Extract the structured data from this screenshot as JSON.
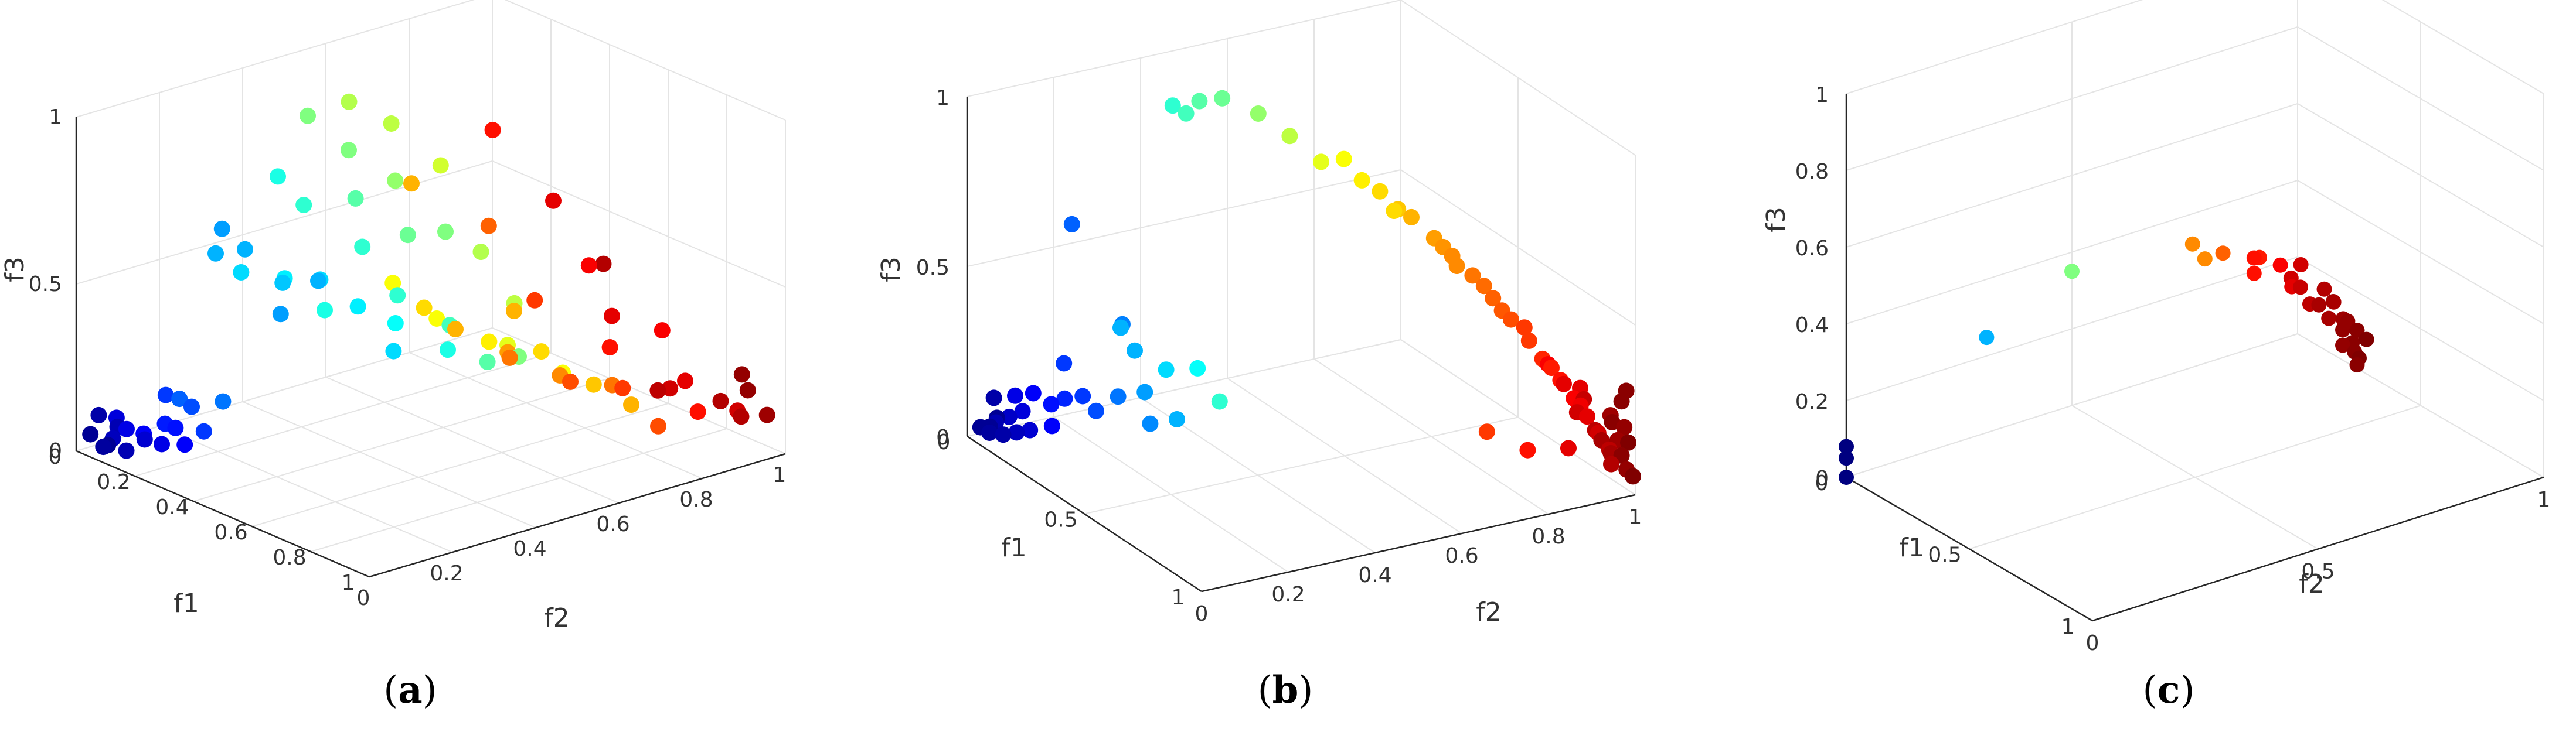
{
  "figure": {
    "panels": [
      {
        "label_open": "(",
        "label_letter": "a",
        "label_close": ")"
      },
      {
        "label_open": "(",
        "label_letter": "b",
        "label_close": ")"
      },
      {
        "label_open": "(",
        "label_letter": "c",
        "label_close": ")"
      }
    ]
  },
  "chart_data": [
    {
      "type": "scatter",
      "panel": "a",
      "xlabel": "f1",
      "ylabel": "f2",
      "zlabel": "f3",
      "xlim": [
        0,
        1
      ],
      "ylim": [
        0,
        1
      ],
      "zlim": [
        0,
        1
      ],
      "x_ticks": [
        "0",
        "0.2",
        "0.4",
        "0.6",
        "0.8",
        "1"
      ],
      "y_ticks": [
        "0",
        "0.2",
        "0.4",
        "0.6",
        "0.8",
        "1"
      ],
      "z_ticks": [
        "0",
        "0.5",
        "1"
      ],
      "x_tick_values": [
        0,
        0.2,
        0.4,
        0.6,
        0.8,
        1
      ],
      "y_tick_values": [
        0,
        0.2,
        0.4,
        0.6,
        0.8,
        1
      ],
      "z_tick_values": [
        0,
        0.5,
        1
      ],
      "grid": true,
      "colormap": "jet",
      "color_by": "f2",
      "points": [
        [
          0.02,
          0.02,
          0.05
        ],
        [
          0.05,
          0.03,
          0.02
        ],
        [
          0.08,
          0.02,
          0.04
        ],
        [
          0.04,
          0.06,
          0.03
        ],
        [
          0.1,
          0.05,
          0.02
        ],
        [
          0.03,
          0.1,
          0.04
        ],
        [
          0.12,
          0.08,
          0.05
        ],
        [
          0.06,
          0.12,
          0.03
        ],
        [
          0.15,
          0.1,
          0.04
        ],
        [
          0.09,
          0.15,
          0.06
        ],
        [
          0.2,
          0.12,
          0.05
        ],
        [
          0.02,
          0.04,
          0.1
        ],
        [
          0.07,
          0.05,
          0.08
        ],
        [
          0.14,
          0.14,
          0.07
        ],
        [
          0.18,
          0.18,
          0.06
        ],
        [
          0.05,
          0.18,
          0.12
        ],
        [
          0.01,
          0.09,
          0.07
        ],
        [
          0.11,
          0.2,
          0.1
        ],
        [
          0.04,
          0.22,
          0.09
        ],
        [
          0.16,
          0.24,
          0.12
        ],
        [
          0.05,
          0.3,
          0.5
        ],
        [
          0.15,
          0.3,
          0.55
        ],
        [
          0.25,
          0.32,
          0.48
        ],
        [
          0.35,
          0.34,
          0.52
        ],
        [
          0.1,
          0.28,
          0.6
        ],
        [
          0.3,
          0.28,
          0.42
        ],
        [
          0.45,
          0.36,
          0.47
        ],
        [
          0.2,
          0.36,
          0.46
        ],
        [
          0.55,
          0.38,
          0.45
        ],
        [
          0.4,
          0.3,
          0.55
        ],
        [
          0.6,
          0.34,
          0.4
        ],
        [
          0.08,
          0.34,
          0.44
        ],
        [
          0.5,
          0.42,
          0.5
        ],
        [
          0.7,
          0.4,
          0.42
        ],
        [
          0.28,
          0.4,
          0.38
        ],
        [
          0.65,
          0.44,
          0.46
        ],
        [
          0.38,
          0.42,
          0.6
        ],
        [
          0.75,
          0.46,
          0.38
        ],
        [
          0.18,
          0.42,
          0.65
        ],
        [
          0.12,
          0.4,
          0.72
        ],
        [
          0.3,
          0.46,
          0.7
        ],
        [
          0.45,
          0.48,
          0.64
        ],
        [
          0.22,
          0.5,
          0.8
        ],
        [
          0.08,
          0.5,
          0.85
        ],
        [
          0.35,
          0.52,
          0.75
        ],
        [
          0.55,
          0.5,
          0.68
        ],
        [
          0.15,
          0.55,
          0.9
        ],
        [
          0.28,
          0.56,
          0.88
        ],
        [
          0.6,
          0.55,
          0.62
        ],
        [
          0.42,
          0.58,
          0.8
        ],
        [
          0.8,
          0.5,
          0.4
        ],
        [
          0.7,
          0.56,
          0.5
        ],
        [
          0.2,
          0.62,
          0.35
        ],
        [
          0.35,
          0.62,
          0.3
        ],
        [
          0.5,
          0.64,
          0.28
        ],
        [
          0.65,
          0.66,
          0.3
        ],
        [
          0.8,
          0.68,
          0.25
        ],
        [
          0.3,
          0.7,
          0.22
        ],
        [
          0.45,
          0.72,
          0.2
        ],
        [
          0.6,
          0.74,
          0.18
        ],
        [
          0.75,
          0.76,
          0.2
        ],
        [
          0.9,
          0.7,
          0.22
        ],
        [
          0.4,
          0.76,
          0.15
        ],
        [
          0.55,
          0.8,
          0.12
        ],
        [
          0.7,
          0.82,
          0.15
        ],
        [
          0.85,
          0.8,
          0.1
        ],
        [
          0.25,
          0.66,
          0.28
        ],
        [
          0.5,
          0.7,
          0.35
        ],
        [
          0.62,
          0.6,
          0.33
        ],
        [
          0.78,
          0.62,
          0.3
        ],
        [
          0.15,
          0.7,
          0.6
        ],
        [
          0.4,
          0.82,
          0.3
        ],
        [
          0.6,
          0.86,
          0.22
        ],
        [
          0.8,
          0.9,
          0.18
        ],
        [
          0.9,
          0.86,
          0.14
        ],
        [
          0.55,
          0.9,
          0.28
        ],
        [
          0.72,
          0.92,
          0.12
        ],
        [
          0.3,
          0.78,
          0.5
        ],
        [
          0.92,
          0.95,
          0.1
        ],
        [
          0.85,
          0.95,
          0.12
        ],
        [
          0.9,
          0.98,
          0.16
        ],
        [
          0.95,
          0.92,
          0.14
        ],
        [
          0.98,
          0.97,
          0.12
        ],
        [
          0.88,
          0.98,
          0.2
        ],
        [
          0.65,
          0.94,
          0.08
        ],
        [
          0.5,
          0.88,
          0.42
        ],
        [
          0.75,
          0.88,
          0.32
        ],
        [
          0.2,
          0.86,
          0.72
        ],
        [
          0.35,
          0.9,
          0.55
        ],
        [
          0.45,
          0.95,
          0.38
        ]
      ]
    },
    {
      "type": "scatter",
      "panel": "b",
      "xlabel": "f1",
      "ylabel": "f2",
      "zlabel": "f3",
      "xlim": [
        0,
        1
      ],
      "ylim": [
        0,
        1
      ],
      "zlim": [
        0,
        1
      ],
      "x_ticks": [
        "0",
        "0.5",
        "1"
      ],
      "y_ticks": [
        "0",
        "0.2",
        "0.4",
        "0.6",
        "0.8",
        "1"
      ],
      "z_ticks": [
        "0",
        "0.5",
        "1"
      ],
      "x_tick_values": [
        0,
        0.5,
        1
      ],
      "y_tick_values": [
        0,
        0.2,
        0.4,
        0.6,
        0.8,
        1
      ],
      "z_tick_values": [
        0,
        0.5,
        1
      ],
      "grid": true,
      "colormap": "jet",
      "color_by": "f2",
      "points": [
        [
          0.02,
          0.02,
          0.03
        ],
        [
          0.04,
          0.03,
          0.02
        ],
        [
          0.06,
          0.02,
          0.05
        ],
        [
          0.03,
          0.05,
          0.04
        ],
        [
          0.08,
          0.04,
          0.03
        ],
        [
          0.05,
          0.07,
          0.06
        ],
        [
          0.1,
          0.06,
          0.04
        ],
        [
          0.07,
          0.09,
          0.08
        ],
        [
          0.12,
          0.08,
          0.05
        ],
        [
          0.02,
          0.1,
          0.1
        ],
        [
          0.06,
          0.12,
          0.12
        ],
        [
          0.1,
          0.14,
          0.1
        ],
        [
          0.14,
          0.12,
          0.06
        ],
        [
          0.04,
          0.04,
          0.12
        ],
        [
          0.09,
          0.02,
          0.09
        ],
        [
          0.12,
          0.16,
          0.12
        ],
        [
          0.16,
          0.18,
          0.14
        ],
        [
          0.18,
          0.2,
          0.1
        ],
        [
          0.08,
          0.18,
          0.2
        ],
        [
          0.2,
          0.24,
          0.14
        ],
        [
          0.24,
          0.28,
          0.16
        ],
        [
          0.16,
          0.3,
          0.24
        ],
        [
          0.22,
          0.34,
          0.2
        ],
        [
          0.28,
          0.38,
          0.22
        ],
        [
          0.2,
          0.25,
          0.35
        ],
        [
          0.04,
          0.22,
          0.58
        ],
        [
          0.1,
          0.3,
          0.28
        ],
        [
          0.3,
          0.26,
          0.1
        ],
        [
          0.34,
          0.3,
          0.12
        ],
        [
          0.3,
          0.42,
          0.12
        ],
        [
          0.1,
          0.42,
          0.9
        ],
        [
          0.12,
          0.44,
          0.88
        ],
        [
          0.14,
          0.46,
          0.92
        ],
        [
          0.2,
          0.48,
          0.95
        ],
        [
          0.28,
          0.52,
          0.93
        ],
        [
          0.34,
          0.56,
          0.88
        ],
        [
          0.4,
          0.6,
          0.82
        ],
        [
          0.46,
          0.62,
          0.85
        ],
        [
          0.5,
          0.64,
          0.8
        ],
        [
          0.54,
          0.66,
          0.78
        ],
        [
          0.58,
          0.68,
          0.74
        ],
        [
          0.6,
          0.7,
          0.72
        ],
        [
          0.66,
          0.72,
          0.68
        ],
        [
          0.7,
          0.74,
          0.64
        ],
        [
          0.75,
          0.76,
          0.6
        ],
        [
          0.8,
          0.78,
          0.55
        ],
        [
          0.84,
          0.8,
          0.5
        ],
        [
          0.88,
          0.82,
          0.45
        ],
        [
          0.9,
          0.84,
          0.4
        ],
        [
          0.94,
          0.86,
          0.35
        ],
        [
          0.96,
          0.88,
          0.3
        ],
        [
          0.98,
          0.9,
          0.25
        ],
        [
          0.99,
          0.92,
          0.2
        ],
        [
          1.0,
          0.94,
          0.15
        ],
        [
          0.6,
          0.66,
          0.75
        ],
        [
          0.72,
          0.74,
          0.62
        ],
        [
          0.82,
          0.79,
          0.52
        ],
        [
          0.92,
          0.85,
          0.38
        ],
        [
          0.97,
          0.89,
          0.28
        ],
        [
          0.99,
          0.95,
          0.1
        ],
        [
          0.86,
          0.82,
          0.48
        ],
        [
          0.78,
          0.77,
          0.58
        ],
        [
          0.68,
          0.73,
          0.66
        ],
        [
          0.95,
          0.9,
          0.32
        ],
        [
          0.9,
          0.92,
          0.22
        ],
        [
          0.94,
          0.94,
          0.18
        ],
        [
          0.88,
          0.9,
          0.3
        ],
        [
          0.97,
          0.96,
          0.12
        ],
        [
          1.0,
          0.98,
          0.08
        ],
        [
          0.93,
          0.96,
          0.14
        ],
        [
          0.96,
          0.99,
          0.1
        ],
        [
          0.85,
          0.88,
          0.35
        ],
        [
          0.98,
          0.97,
          0.16
        ],
        [
          0.91,
          0.93,
          0.26
        ],
        [
          0.99,
          1.0,
          0.05
        ],
        [
          0.8,
          0.86,
          0.08
        ],
        [
          0.9,
          0.9,
          0.12
        ],
        [
          0.7,
          0.82,
          0.1
        ],
        [
          0.98,
          0.99,
          0.3
        ],
        [
          0.99,
          0.98,
          0.2
        ],
        [
          0.96,
          0.99,
          0.26
        ],
        [
          0.95,
          0.97,
          0.22
        ],
        [
          0.97,
          1.0,
          0.14
        ],
        [
          0.92,
          0.99,
          0.18
        ]
      ]
    },
    {
      "type": "scatter",
      "panel": "c",
      "xlabel": "f1",
      "ylabel": "f2",
      "zlabel": "f3",
      "xlim": [
        0,
        1
      ],
      "ylim": [
        0,
        1
      ],
      "zlim": [
        0,
        1
      ],
      "x_ticks": [
        "0",
        "0.5",
        "1"
      ],
      "y_ticks": [
        "0",
        "0.5",
        "1"
      ],
      "z_ticks": [
        "0",
        "0.2",
        "0.4",
        "0.6",
        "0.8",
        "1"
      ],
      "x_tick_values": [
        0,
        0.5,
        1
      ],
      "y_tick_values": [
        0,
        0.5,
        1
      ],
      "z_tick_values": [
        0,
        0.2,
        0.4,
        0.6,
        0.8,
        1
      ],
      "grid": true,
      "colormap": "jet",
      "color_by": "f2",
      "points": [
        [
          0.0,
          0.0,
          0.0
        ],
        [
          0.0,
          0.0,
          0.05
        ],
        [
          0.0,
          0.0,
          0.08
        ],
        [
          0.02,
          0.3,
          0.26
        ],
        [
          0.0,
          0.5,
          0.35
        ],
        [
          0.1,
          0.78,
          0.33
        ],
        [
          0.05,
          0.74,
          0.35
        ],
        [
          0.1,
          0.74,
          0.33
        ],
        [
          0.12,
          0.85,
          0.3
        ],
        [
          0.08,
          0.86,
          0.28
        ],
        [
          0.08,
          0.86,
          0.24
        ],
        [
          0.15,
          0.88,
          0.28
        ],
        [
          0.16,
          0.92,
          0.27
        ],
        [
          0.16,
          0.9,
          0.22
        ],
        [
          0.12,
          0.92,
          0.22
        ],
        [
          0.14,
          0.93,
          0.2
        ],
        [
          0.2,
          0.95,
          0.21
        ],
        [
          0.16,
          0.94,
          0.16
        ],
        [
          0.22,
          0.96,
          0.18
        ],
        [
          0.2,
          0.97,
          0.17
        ],
        [
          0.2,
          0.96,
          0.13
        ],
        [
          0.16,
          0.96,
          0.15
        ],
        [
          0.24,
          0.97,
          0.14
        ],
        [
          0.24,
          0.98,
          0.13
        ],
        [
          0.22,
          0.98,
          0.1
        ],
        [
          0.26,
          0.99,
          0.11
        ],
        [
          0.22,
          0.98,
          0.06
        ],
        [
          0.24,
          0.99,
          0.07
        ],
        [
          0.28,
          1.0,
          0.09
        ],
        [
          0.25,
          0.99,
          0.05
        ],
        [
          0.26,
          0.99,
          0.02
        ],
        [
          0.25,
          1.0,
          0.03
        ]
      ]
    }
  ]
}
